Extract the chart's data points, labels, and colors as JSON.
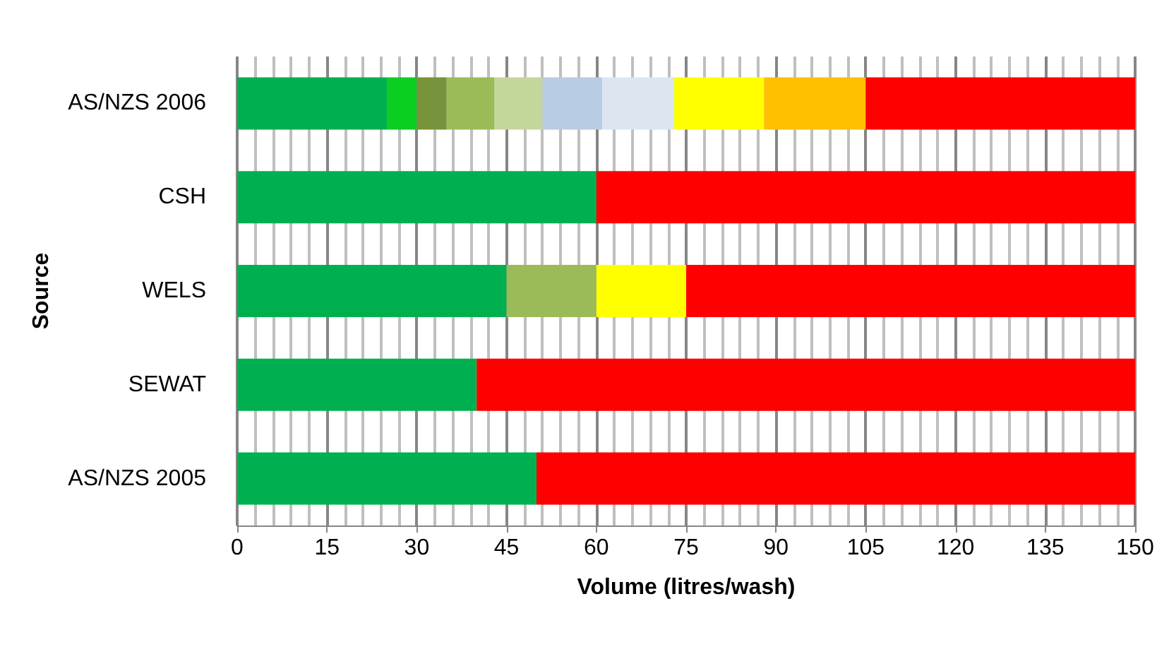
{
  "chart_data": {
    "type": "bar",
    "orientation": "horizontal",
    "stacked": true,
    "xlabel": "Volume (litres/wash)",
    "ylabel": "Source",
    "categories": [
      "AS/NZS 2006",
      "CSH",
      "WELS",
      "SEWAT",
      "AS/NZS 2005"
    ],
    "xlim": [
      0,
      150
    ],
    "xticks": [
      0,
      15,
      30,
      45,
      60,
      75,
      90,
      105,
      120,
      135,
      150
    ],
    "grid": "x",
    "series": [
      {
        "color": "#00b050",
        "values": [
          25,
          60,
          45,
          40,
          50
        ]
      },
      {
        "color": "#0acf20",
        "values": [
          5,
          null,
          null,
          null,
          null
        ]
      },
      {
        "color": "#77933c",
        "values": [
          5,
          null,
          null,
          null,
          null
        ]
      },
      {
        "color": "#9bbb59",
        "values": [
          8,
          null,
          15,
          null,
          null
        ]
      },
      {
        "color": "#c4d79b",
        "values": [
          8,
          null,
          null,
          null,
          null
        ]
      },
      {
        "color": "#b8cce4",
        "values": [
          10,
          null,
          null,
          null,
          null
        ]
      },
      {
        "color": "#dce6f1",
        "values": [
          12,
          null,
          null,
          null,
          null
        ]
      },
      {
        "color": "#ffff00",
        "values": [
          15,
          null,
          15,
          null,
          null
        ]
      },
      {
        "color": "#ffc000",
        "values": [
          17,
          null,
          null,
          null,
          null
        ]
      },
      {
        "color": "#ff0000",
        "values": [
          45,
          90,
          75,
          110,
          100
        ]
      }
    ]
  }
}
